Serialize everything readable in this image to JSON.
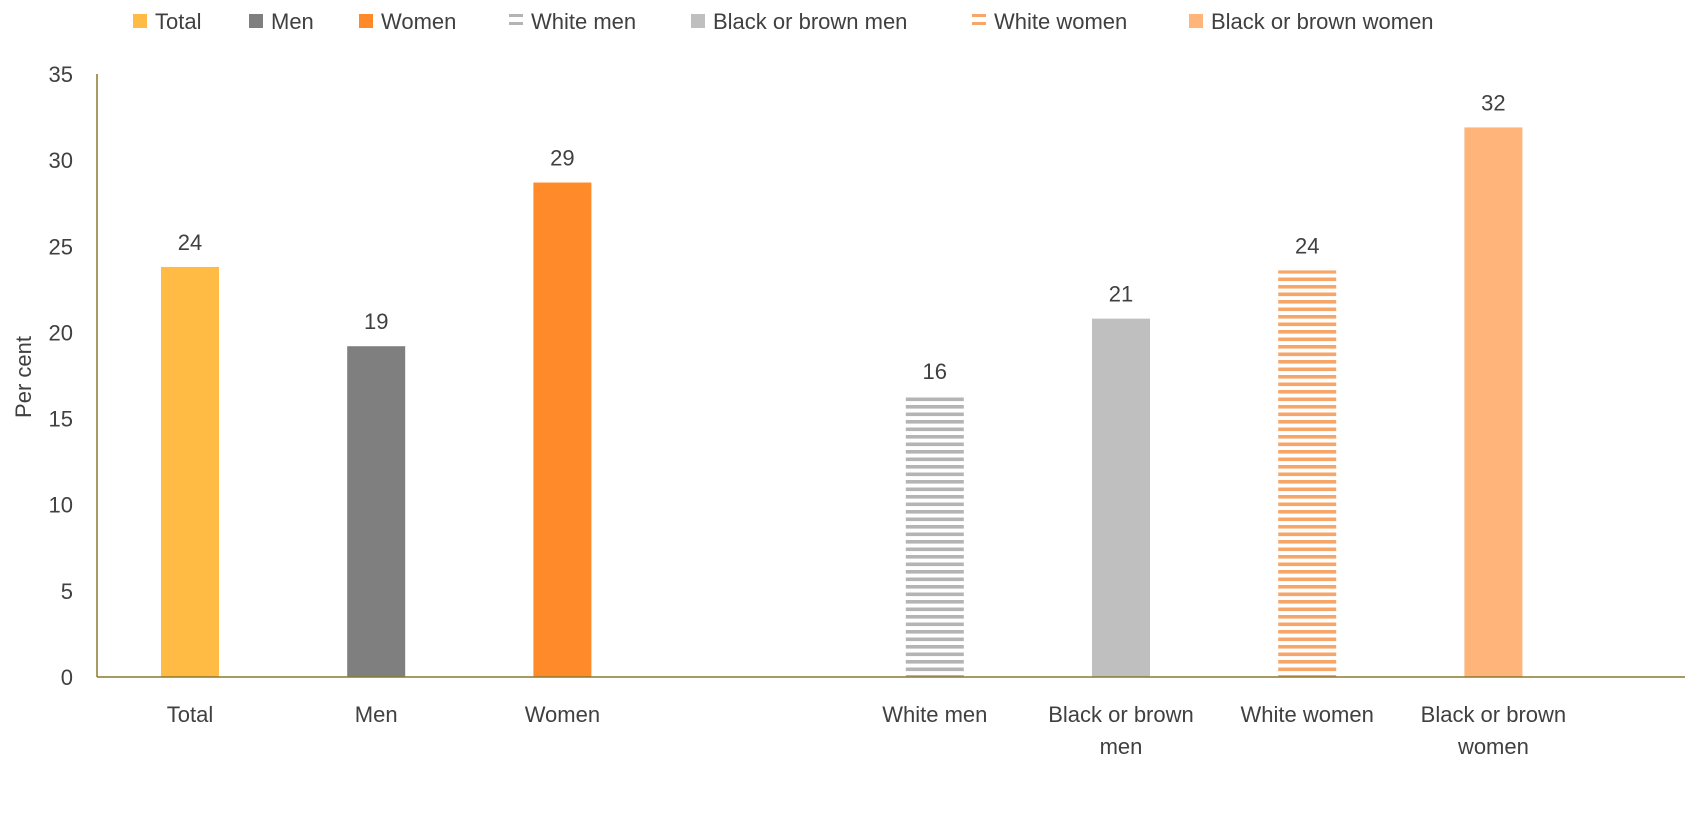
{
  "chart_data": {
    "type": "bar",
    "title": "",
    "xlabel": "",
    "ylabel": "Per cent",
    "ylim": [
      0,
      35
    ],
    "yticks": [
      0,
      5,
      10,
      15,
      20,
      25,
      30,
      35
    ],
    "grid": false,
    "legend_position": "top",
    "categories": [
      {
        "label_lines": [
          "Total"
        ]
      },
      {
        "label_lines": [
          "Men"
        ]
      },
      {
        "label_lines": [
          "Women"
        ]
      },
      {
        "label_lines": [
          ""
        ]
      },
      {
        "label_lines": [
          "White men"
        ]
      },
      {
        "label_lines": [
          "Black or brown",
          "men"
        ]
      },
      {
        "label_lines": [
          "White women"
        ]
      },
      {
        "label_lines": [
          "Black or brown",
          "women"
        ]
      }
    ],
    "series": [
      {
        "name": "Total",
        "color": "#FFBB44",
        "pattern": "solid",
        "values": [
          23.8,
          null,
          null,
          null,
          null,
          null,
          null,
          null
        ],
        "labels": [
          "24",
          "",
          "",
          "",
          "",
          "",
          "",
          ""
        ]
      },
      {
        "name": "Men",
        "color": "#7F7F7F",
        "pattern": "solid",
        "values": [
          null,
          19.2,
          null,
          null,
          null,
          null,
          null,
          null
        ],
        "labels": [
          "",
          "19",
          "",
          "",
          "",
          "",
          "",
          ""
        ]
      },
      {
        "name": "Women",
        "color": "#FF8A2A",
        "pattern": "solid",
        "values": [
          null,
          null,
          28.7,
          null,
          null,
          null,
          null,
          null
        ],
        "labels": [
          "",
          "",
          "29",
          "",
          "",
          "",
          "",
          ""
        ]
      },
      {
        "name": "White men",
        "color": "#B4B4B4",
        "pattern": "horizontal-stripes",
        "values": [
          null,
          null,
          null,
          null,
          16.3,
          null,
          null,
          null
        ],
        "labels": [
          "",
          "",
          "",
          "",
          "16",
          "",
          "",
          ""
        ]
      },
      {
        "name": "Black or brown men",
        "color": "#BFBFBF",
        "pattern": "solid",
        "values": [
          null,
          null,
          null,
          null,
          null,
          20.8,
          null,
          null
        ],
        "labels": [
          "",
          "",
          "",
          "",
          "",
          "21",
          "",
          ""
        ]
      },
      {
        "name": "White women",
        "color": "#F7A66A",
        "pattern": "horizontal-stripes",
        "values": [
          null,
          null,
          null,
          null,
          null,
          null,
          23.6,
          null
        ],
        "labels": [
          "",
          "",
          "",
          "",
          "",
          "",
          "24",
          ""
        ]
      },
      {
        "name": "Black or brown women",
        "color": "#FFB47A",
        "pattern": "solid",
        "values": [
          null,
          null,
          null,
          null,
          null,
          null,
          null,
          31.9
        ],
        "labels": [
          "",
          "",
          "",
          "",
          "",
          "",
          "",
          "32"
        ]
      }
    ],
    "axis_color": "#8C7A2E"
  }
}
